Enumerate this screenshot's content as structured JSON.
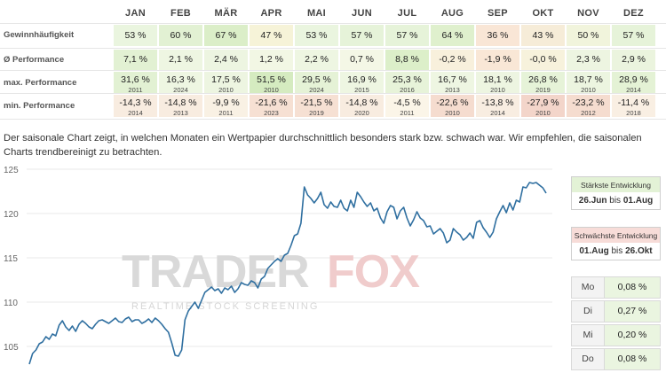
{
  "months": [
    "JAN",
    "FEB",
    "MÄR",
    "APR",
    "MAI",
    "JUN",
    "JUL",
    "AUG",
    "SEP",
    "OKT",
    "NOV",
    "DEZ"
  ],
  "rows": [
    {
      "label": "Gewinnhäufigkeit",
      "values": [
        "53 %",
        "60 %",
        "67 %",
        "47 %",
        "53 %",
        "57 %",
        "57 %",
        "64 %",
        "36 %",
        "43 %",
        "50 %",
        "57 %"
      ],
      "colors": [
        "#eaf5df",
        "#e2f1d3",
        "#dbeec8",
        "#f6f3d8",
        "#eaf5df",
        "#e6f3d9",
        "#e6f3d9",
        "#dff0cd",
        "#f9e6d6",
        "#f6ecd8",
        "#f1f4dc",
        "#e6f3d9"
      ]
    },
    {
      "label": "Ø Performance",
      "values": [
        "7,1 %",
        "2,1 %",
        "2,4 %",
        "1,2 %",
        "2,2 %",
        "0,7 %",
        "8,8 %",
        "-0,2 %",
        "-1,9 %",
        "-0,0 %",
        "2,3 %",
        "2,9 %"
      ],
      "colors": [
        "#e2f1d3",
        "#eef6e2",
        "#edf5e1",
        "#f2f7e4",
        "#eef6e2",
        "#f4f7e6",
        "#dcefc9",
        "#f8f0dc",
        "#f9e7d6",
        "#f7f2dc",
        "#edf5e1",
        "#ebf4de"
      ]
    },
    {
      "label": "max. Performance",
      "values": [
        "31,6 %",
        "16,3 %",
        "17,5 %",
        "51,5 %",
        "29,5 %",
        "16,9 %",
        "25,3 %",
        "16,7 %",
        "18,1 %",
        "26,8 %",
        "18,7 %",
        "28,9 %"
      ],
      "years": [
        "2011",
        "2024",
        "2010",
        "2010",
        "2024",
        "2015",
        "2016",
        "2013",
        "2010",
        "2019",
        "2010",
        "2014"
      ],
      "colors": [
        "#e2f1d3",
        "#eef6e2",
        "#edf5e1",
        "#d5ebc0",
        "#e5f2d6",
        "#eef6e2",
        "#e7f3d9",
        "#eef6e2",
        "#edf5e1",
        "#e6f3d8",
        "#ecf5e0",
        "#e4f2d5"
      ]
    },
    {
      "label": "min. Performance",
      "values": [
        "-14,3 %",
        "-14,8 %",
        "-9,9 %",
        "-21,6 %",
        "-21,5 %",
        "-14,8 %",
        "-4,5 %",
        "-22,6 %",
        "-13,8 %",
        "-27,9 %",
        "-23,2 %",
        "-11,4 %"
      ],
      "years": [
        "2014",
        "2013",
        "2011",
        "2023",
        "2019",
        "2020",
        "2011",
        "2010",
        "2014",
        "2010",
        "2012",
        "2018"
      ],
      "colors": [
        "#f8ece0",
        "#f8ece0",
        "#f9f1e4",
        "#f6e0d3",
        "#f6e0d3",
        "#f8ece0",
        "#fbf5e8",
        "#f5dccf",
        "#f8ede1",
        "#f3d5ca",
        "#f5dccf",
        "#f9efe3"
      ]
    }
  ],
  "description": "Der saisonale Chart zeigt, in welchen Monaten ein Wertpapier durchschnittlich besonders stark bzw. schwach war. Wir empfehlen, die saisonalen Charts trendbereinigt zu betrachten.",
  "strongest": {
    "title": "Stärkste Entwicklung",
    "from": "26.Jun",
    "joiner": "bis",
    "to": "01.Aug",
    "color": "#e3f2d6"
  },
  "weakest": {
    "title": "Schwächste Entwicklung",
    "from": "01.Aug",
    "joiner": "bis",
    "to": "26.Okt",
    "color": "#f7dcd8"
  },
  "weekdays": [
    {
      "day": "Mo",
      "value": "0,08 %"
    },
    {
      "day": "Di",
      "value": "0,27 %"
    },
    {
      "day": "Mi",
      "value": "0,20 %"
    },
    {
      "day": "Do",
      "value": "0,08 %"
    }
  ],
  "watermark": {
    "brand_a": "TRADER",
    "brand_b": "FOX",
    "tagline": "REALTIME STOCK SCREENING"
  },
  "chart_data": {
    "type": "line",
    "y_ticks": [
      "105",
      "110",
      "115",
      "120",
      "125"
    ],
    "ylim": [
      102,
      125.5
    ],
    "line_color": "#2f6fa0",
    "series": [
      {
        "values": [
          103,
          104.2,
          104.6,
          105.3,
          105.5,
          106.1,
          105.8,
          106.4,
          106.2,
          107.4,
          107.9,
          107.2,
          106.8,
          107.3,
          106.7,
          107.5,
          107.9,
          107.6,
          107.2,
          107.0,
          107.5,
          107.9,
          108.0,
          107.8,
          107.6,
          107.9,
          108.2,
          107.8,
          107.7,
          108.1,
          108.3,
          107.8,
          108.0,
          108.0,
          107.6,
          107.8,
          108.1,
          107.7,
          108.2,
          107.9,
          107.5,
          107.0,
          106.6,
          105.4,
          104.0,
          103.9,
          104.6,
          108.0,
          109.0,
          109.5,
          110.0,
          109.3,
          110.2,
          111.1,
          111.4,
          111.7,
          111.3,
          111.5,
          111.0,
          111.6,
          111.4,
          111.8,
          111.1,
          111.5,
          112.2,
          112.0,
          111.9,
          112.4,
          112.2,
          111.6,
          112.6,
          112.9,
          113.8,
          114.2,
          114.6,
          114.9,
          114.6,
          115.3,
          115.5,
          116.4,
          117.5,
          117.7,
          118.9,
          123.0,
          122.1,
          121.7,
          121.2,
          121.7,
          122.4,
          121.0,
          120.6,
          121.3,
          120.8,
          120.7,
          121.5,
          120.6,
          120.3,
          121.5,
          120.7,
          122.4,
          121.9,
          121.3,
          120.8,
          121.2,
          120.3,
          120.6,
          119.5,
          118.9,
          120.2,
          120.9,
          120.7,
          119.4,
          120.3,
          120.7,
          119.5,
          118.6,
          119.3,
          120.2,
          119.5,
          119.2,
          118.5,
          118.6,
          117.7,
          118.0,
          118.3,
          117.8,
          116.7,
          117.0,
          118.3,
          117.9,
          117.6,
          117.0,
          117.3,
          117.8,
          117.2,
          119.0,
          119.2,
          118.4,
          117.9,
          117.3,
          117.9,
          119.4,
          120.2,
          120.9,
          120.1,
          121.2,
          120.4,
          121.5,
          121.3,
          123.0,
          122.9,
          123.5,
          123.4,
          123.5,
          123.2,
          122.9,
          122.3
        ]
      }
    ]
  }
}
